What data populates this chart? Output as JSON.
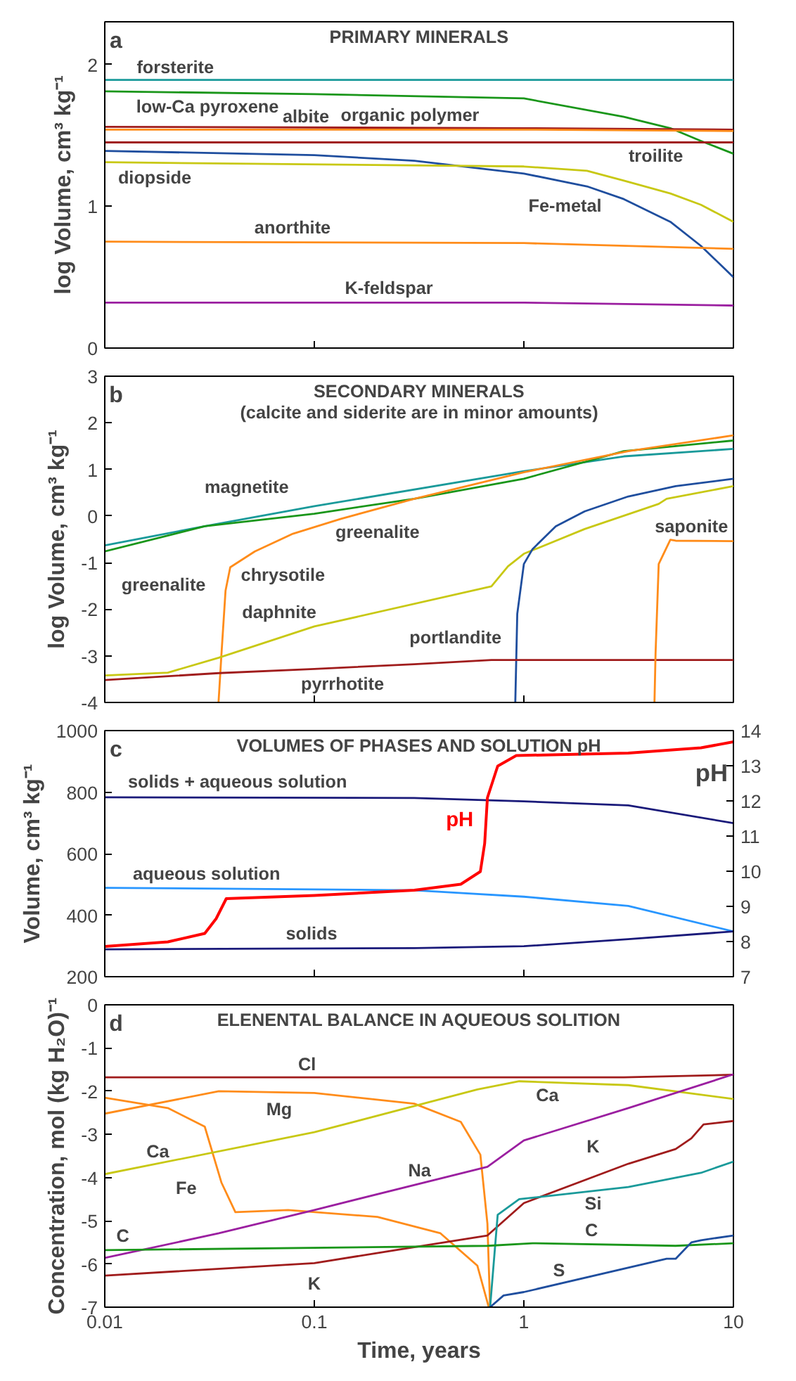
{
  "chart_data": [
    {
      "type": "line",
      "title": "PRIMARY MINERALS",
      "ylabel": "log Volume, cm³ kg⁻¹",
      "log": "x",
      "xlim": [
        0.01,
        10
      ],
      "xticks": [
        0.01,
        0.1,
        1,
        10
      ],
      "ylim": [
        0,
        2.3
      ],
      "yticks": [
        0,
        1,
        2
      ],
      "tick_labels": "y",
      "series": [
        {
          "color": "#1a9a9a",
          "x": [
            0.01,
            10
          ],
          "values": [
            1.89,
            1.89
          ]
        },
        {
          "color": "#1a961a",
          "x": [
            0.01,
            0.1,
            1,
            3,
            5,
            7,
            10
          ],
          "values": [
            1.81,
            1.79,
            1.76,
            1.63,
            1.55,
            1.46,
            1.37
          ]
        },
        {
          "color": "#a01c1c",
          "x": [
            0.01,
            1,
            10
          ],
          "values": [
            1.56,
            1.55,
            1.54
          ]
        },
        {
          "color": "#ff8c1a",
          "x": [
            0.01,
            1,
            10
          ],
          "values": [
            1.54,
            1.54,
            1.53
          ]
        },
        {
          "color": "#a01c1c",
          "x": [
            0.01,
            10
          ],
          "values": [
            1.45,
            1.45
          ]
        },
        {
          "color": "#1f4e9e",
          "x": [
            0.01,
            0.1,
            0.3,
            1,
            2,
            3,
            5,
            7,
            10
          ],
          "values": [
            1.39,
            1.36,
            1.32,
            1.23,
            1.14,
            1.05,
            0.89,
            0.72,
            0.5
          ]
        },
        {
          "color": "#c8c814",
          "x": [
            0.01,
            1,
            2,
            3,
            5,
            7,
            10
          ],
          "values": [
            1.31,
            1.28,
            1.25,
            1.18,
            1.09,
            1.01,
            0.89
          ]
        },
        {
          "color": "#ff8c1a",
          "x": [
            0.01,
            1,
            10
          ],
          "values": [
            0.75,
            0.74,
            0.7
          ]
        },
        {
          "color": "#9b1fa0",
          "x": [
            0.01,
            1,
            10
          ],
          "values": [
            0.32,
            0.32,
            0.3
          ]
        }
      ],
      "annotations": [
        "a",
        {
          "text": "forsterite",
          "x": 0.0217,
          "y": 1.89
        },
        {
          "text": "low-Ca pyroxene",
          "x": 0.0309,
          "y": 1.8
        },
        {
          "text": "albite",
          "x": 0.0911,
          "y": 1.56
        },
        {
          "text": "organic polymer",
          "x": 0.286,
          "y": 1.54
        },
        {
          "text": "troilite",
          "x": 4.26,
          "y": 1.45
        },
        {
          "text": "diopside",
          "x": 0.0173,
          "y": 1.31
        },
        {
          "text": "Fe-metal",
          "x": 2.5,
          "y": 1.1
        },
        {
          "text": "anorthite",
          "x": 0.0787,
          "y": 0.75
        },
        {
          "text": "K-feldspar",
          "x": 0.227,
          "y": 0.32
        }
      ]
    },
    {
      "type": "line",
      "title": "SECONDARY MINERALS",
      "subtitle": "(calcite and siderite are in minor amounts)",
      "ylabel": "log Volume, cm³ kg⁻¹",
      "log": "x",
      "xlim": [
        0.01,
        10
      ],
      "xticks": [
        0.01,
        0.1,
        1,
        10
      ],
      "ylim": [
        -4,
        3
      ],
      "yticks": [
        -4,
        -3,
        -2,
        -1,
        0,
        1,
        2,
        3
      ],
      "tick_labels": "y",
      "series": [
        {
          "color": "#1a9a9a",
          "x": [
            0.01,
            0.03,
            0.1,
            1,
            3,
            10
          ],
          "values": [
            -0.63,
            -0.22,
            0.21,
            0.96,
            1.28,
            1.44
          ]
        },
        {
          "color": "#1a961a",
          "x": [
            0.01,
            0.03,
            0.1,
            0.3,
            1,
            3,
            10
          ],
          "values": [
            -0.76,
            -0.22,
            0.05,
            0.37,
            0.8,
            1.39,
            1.62
          ]
        },
        {
          "color": "#ff8c1a",
          "x": [
            0.0349,
            0.036,
            0.0377,
            0.0397,
            0.052,
            0.079,
            0.134,
            0.3,
            1,
            3.15,
            10
          ],
          "values": [
            -4,
            -3.0,
            -1.6,
            -1.1,
            -0.76,
            -0.38,
            -0.06,
            0.37,
            0.94,
            1.39,
            1.73
          ]
        },
        {
          "color": "#c8c814",
          "x": [
            0.01,
            0.02,
            0.035,
            0.1,
            0.7,
            0.84,
            1,
            1.95,
            4.4,
            4.8,
            10
          ],
          "values": [
            -3.42,
            -3.36,
            -3.04,
            -2.37,
            -1.51,
            -1.08,
            -0.81,
            -0.28,
            0.26,
            0.37,
            0.64
          ]
        },
        {
          "color": "#1f4e9e",
          "x": [
            0.91,
            0.93,
            1,
            1.1,
            1.42,
            1.95,
            3.15,
            5.3,
            10
          ],
          "values": [
            -4,
            -2.1,
            -1.03,
            -0.71,
            -0.22,
            0.1,
            0.42,
            0.64,
            0.8
          ]
        },
        {
          "color": "#a01c1c",
          "x": [
            0.01,
            0.035,
            0.1,
            0.3,
            0.7,
            10
          ],
          "values": [
            -3.52,
            -3.37,
            -3.28,
            -3.18,
            -3.09,
            -3.09
          ]
        },
        {
          "color": "#ff8c1a",
          "x": [
            4.2,
            4.25,
            4.4,
            5.0,
            5.3,
            10
          ],
          "values": [
            -4,
            -2.96,
            -1.03,
            -0.51,
            -0.53,
            -0.54
          ]
        }
      ],
      "annotations": [
        "b",
        {
          "text": "magnetite",
          "x": 0.07,
          "y": 0.08
        },
        {
          "text": "greenalite",
          "x": 0.2,
          "y": 0.25
        },
        {
          "text": "greenalite",
          "x": 0.012,
          "y": -0.6
        },
        {
          "text": "chrysotile",
          "x": 0.052,
          "y": -0.76
        },
        {
          "text": "daphnite",
          "x": 0.1,
          "y": -2.37
        },
        {
          "text": "portlandite",
          "x": 0.93,
          "y": -2.1
        },
        {
          "text": "saponite",
          "x": 6.3,
          "y": -0.53
        },
        {
          "text": "pyrrhotite",
          "x": 0.1,
          "y": -3.28
        }
      ]
    },
    {
      "type": "line",
      "title": "VOLUMES OF PHASES AND SOLUTION pH",
      "ylabel": "Volume, cm³ kg⁻¹",
      "y2label": "pH",
      "log": "x",
      "xlim": [
        0.01,
        10
      ],
      "xticks": [
        0.01,
        0.1,
        1,
        10
      ],
      "ylim": [
        200,
        1000
      ],
      "yticks": [
        200,
        400,
        600,
        800,
        1000
      ],
      "y2lim": [
        7,
        14
      ],
      "y2ticks": [
        7,
        8,
        9,
        10,
        11,
        12,
        13,
        14
      ],
      "tick_labels": "y",
      "series": [
        {
          "color": "#1a1a7a",
          "x": [
            0.01,
            0.3,
            1,
            3.15,
            10
          ],
          "values": [
            783,
            781,
            770,
            757,
            699
          ]
        },
        {
          "color": "#2896ff",
          "x": [
            0.01,
            0.3,
            1,
            3.15,
            10
          ],
          "values": [
            489,
            481,
            460,
            430,
            347
          ]
        },
        {
          "color": "#1a1a7a",
          "x": [
            0.01,
            0.3,
            1,
            3.15,
            10
          ],
          "values": [
            289,
            293,
            299,
            322,
            347
          ]
        },
        {
          "name": "pH",
          "axis": "y2",
          "color": "#ff0000",
          "x": [
            0.01,
            0.02,
            0.03,
            0.034,
            0.038,
            0.1,
            0.3,
            0.5,
            0.62,
            0.65,
            0.67,
            0.75,
            0.92,
            3.15,
            7,
            10
          ],
          "values": [
            7.86,
            7.99,
            8.23,
            8.65,
            9.22,
            9.31,
            9.46,
            9.63,
            9.99,
            10.79,
            12.09,
            12.99,
            13.29,
            13.36,
            13.51,
            13.68
          ]
        }
      ],
      "annotations": [
        "c",
        {
          "text": "solids + aqueous solution",
          "x": 0.043,
          "y": 782
        },
        {
          "text": "aqueous solution",
          "x": 0.0306,
          "y": 488
        },
        {
          "text": "solids",
          "x": 0.097,
          "y": 290
        }
      ]
    },
    {
      "type": "line",
      "title": "ELENENTAL BALANCE IN AQUEOUS SOLITION",
      "ylabel": "Concentration, mol (kg H₂O)⁻¹",
      "xlabel": "Time, years",
      "log": "x",
      "xlim": [
        0.01,
        10
      ],
      "xticks": [
        0.01,
        0.1,
        1,
        10
      ],
      "ylim": [
        -7,
        0
      ],
      "yticks": [
        -7,
        -6,
        -5,
        -4,
        -3,
        -2,
        -1,
        0
      ],
      "series": [
        {
          "color": "#a01c1c",
          "x": [
            0.01,
            3,
            10
          ],
          "values": [
            -1.68,
            -1.68,
            -1.62
          ]
        },
        {
          "color": "#ff8c1a",
          "x": [
            0.01,
            0.035,
            0.1,
            0.3,
            0.5,
            0.62,
            0.67,
            0.69
          ],
          "values": [
            -2.52,
            -2.0,
            -2.04,
            -2.29,
            -2.71,
            -3.47,
            -5.07,
            -7
          ]
        },
        {
          "color": "#ff8c1a",
          "x": [
            0.01,
            0.02,
            0.03,
            0.036,
            0.042,
            0.075,
            0.2,
            0.4,
            0.6,
            0.68
          ],
          "values": [
            -2.15,
            -2.39,
            -2.82,
            -4.11,
            -4.8,
            -4.75,
            -4.91,
            -5.29,
            -6.04,
            -7
          ]
        },
        {
          "color": "#c8c814",
          "x": [
            0.01,
            0.1,
            0.6,
            0.95,
            3.15,
            10
          ],
          "values": [
            -3.92,
            -2.95,
            -1.96,
            -1.77,
            -1.86,
            -2.18
          ]
        },
        {
          "color": "#9b1fa0",
          "x": [
            0.01,
            0.035,
            0.1,
            0.67,
            1,
            3.15,
            10
          ],
          "values": [
            -5.86,
            -5.29,
            -4.75,
            -3.75,
            -3.14,
            -2.39,
            -1.61
          ]
        },
        {
          "color": "#a01c1c",
          "x": [
            0.01,
            0.1,
            0.3,
            0.67,
            1,
            3.15,
            5.3,
            6.3,
            7.2,
            10
          ],
          "values": [
            -6.27,
            -5.98,
            -5.61,
            -5.34,
            -4.59,
            -3.68,
            -3.34,
            -3.09,
            -2.77,
            -2.69
          ]
        },
        {
          "color": "#1a9a9a",
          "x": [
            0.69,
            0.75,
            0.95,
            3.15,
            7,
            10
          ],
          "values": [
            -7,
            -4.86,
            -4.5,
            -4.22,
            -3.89,
            -3.63
          ]
        },
        {
          "color": "#1a961a",
          "x": [
            0.01,
            0.67,
            1.1,
            5.3,
            10
          ],
          "values": [
            -5.68,
            -5.58,
            -5.52,
            -5.58,
            -5.52
          ]
        },
        {
          "color": "#1f4e9e",
          "x": [
            0.69,
            0.8,
            1,
            4.8,
            5.3,
            6.3,
            7,
            10
          ],
          "values": [
            -7,
            -6.73,
            -6.65,
            -5.88,
            -5.88,
            -5.5,
            -5.45,
            -5.34
          ]
        }
      ],
      "annotations": [
        "d",
        {
          "text": "Cl",
          "x": 0.0923,
          "y": -1.68
        },
        {
          "text": "Mg",
          "x": 0.1,
          "y": -2.04
        },
        {
          "text": "Ca",
          "x": 0.95,
          "y": -1.77
        },
        {
          "text": "Ca",
          "x": 0.0179,
          "y": -3.67
        },
        {
          "text": "Na",
          "x": 0.318,
          "y": -4.14
        },
        {
          "text": "Fe",
          "x": 0.042,
          "y": -4.8
        },
        {
          "text": "K",
          "x": 3.15,
          "y": -3.68
        },
        {
          "text": "Si",
          "x": 3.15,
          "y": -4.22
        },
        {
          "text": "C",
          "x": 2.1,
          "y": -5.55
        },
        {
          "text": "C",
          "x": 0.0122,
          "y": -5.68
        },
        {
          "text": "S",
          "x": 1.47,
          "y": -6.55
        },
        {
          "text": "K",
          "x": 0.1,
          "y": -5.98
        }
      ]
    }
  ]
}
